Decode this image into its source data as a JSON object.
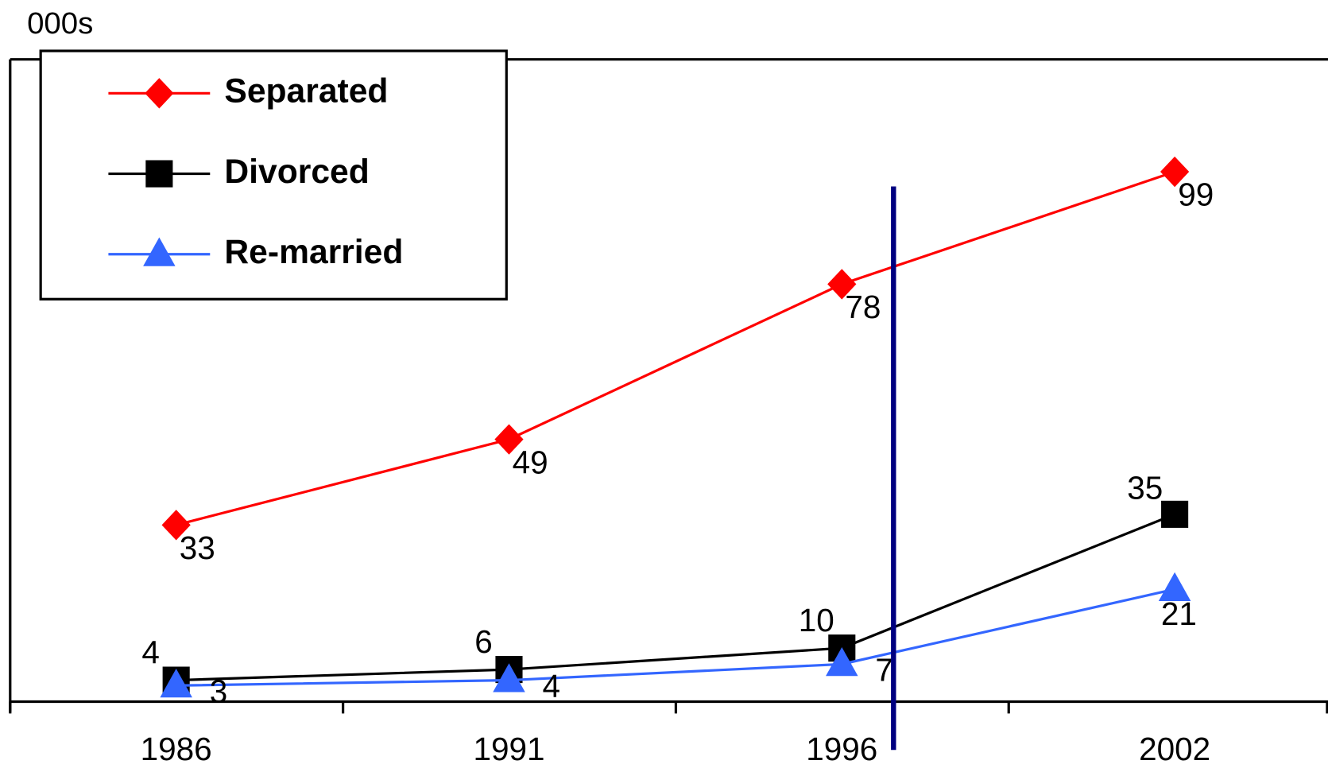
{
  "chart_data": {
    "type": "line",
    "y_label": "000s",
    "categories": [
      "1986",
      "1991",
      "1996",
      "2002"
    ],
    "series": [
      {
        "name": "Separated",
        "color": "#ff0000",
        "marker": "diamond",
        "values": [
          33,
          49,
          78,
          99
        ]
      },
      {
        "name": "Divorced",
        "color": "#000000",
        "marker": "square",
        "values": [
          4,
          6,
          10,
          35
        ]
      },
      {
        "name": "Re-married",
        "color": "#3366ff",
        "marker": "triangle",
        "values": [
          3,
          4,
          7,
          21
        ]
      }
    ],
    "ylim": [
      0,
      120
    ],
    "legend": "upper left"
  }
}
